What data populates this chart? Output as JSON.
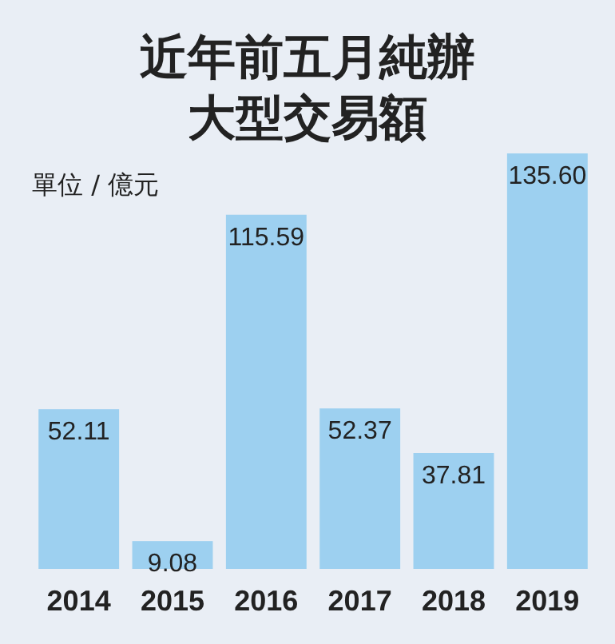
{
  "chart_data": {
    "type": "bar",
    "title": "近年前五月純辦大型交易額",
    "ylabel": "單位 / 億元",
    "categories": [
      "2014",
      "2015",
      "2016",
      "2017",
      "2018",
      "2019"
    ],
    "values": [
      52.11,
      9.08,
      115.59,
      52.37,
      37.81,
      135.6
    ],
    "value_labels": [
      "52.11",
      "9.08",
      "115.59",
      "52.37",
      "37.81",
      "135.60"
    ],
    "color": "#9dd0f0"
  }
}
